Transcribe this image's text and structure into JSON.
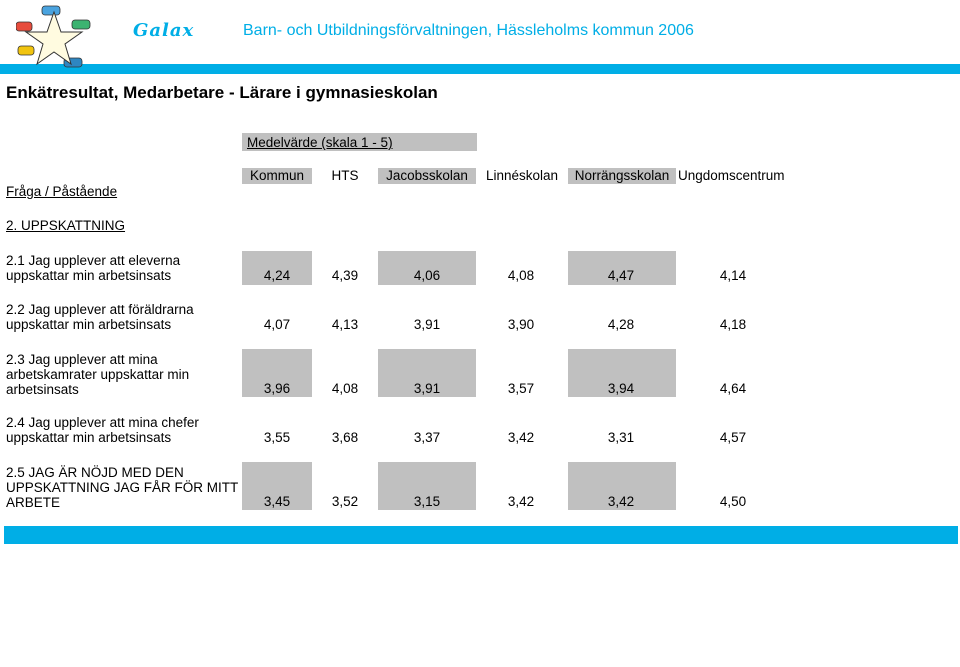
{
  "header": {
    "brand": "Galax",
    "organization": "Barn- och Utbildningsförvaltningen, Hässleholms kommun 2006",
    "title": "Enkätresultat, Medarbetare - Lärare i gymnasieskolan",
    "accent_color": "#00aee6"
  },
  "table": {
    "scale_label": "Medelvärde (skala 1 - 5)",
    "question_header": "Fråga / Påstående",
    "section": "2. UPPSKATTNING",
    "columns": [
      "Kommun",
      "HTS",
      "Jacobsskolan",
      "Linnéskolan",
      "Norrängsskolan",
      "Ungdomscentrum"
    ],
    "rows": [
      {
        "lines": [
          "2.1 Jag upplever att eleverna",
          "uppskattar min arbetsinsats"
        ],
        "values": [
          "4,24",
          "4,39",
          "4,06",
          "4,08",
          "4,47",
          "4,14"
        ]
      },
      {
        "lines": [
          "2.2 Jag upplever att föräldrarna",
          "uppskattar min arbetsinsats"
        ],
        "values": [
          "4,07",
          "4,13",
          "3,91",
          "3,90",
          "4,28",
          "4,18"
        ]
      },
      {
        "lines": [
          "2.3 Jag upplever att mina",
          "arbetskamrater uppskattar min",
          "arbetsinsats"
        ],
        "values": [
          "3,96",
          "4,08",
          "3,91",
          "3,57",
          "3,94",
          "4,64"
        ]
      },
      {
        "lines": [
          "2.4 Jag upplever att mina chefer",
          "uppskattar min arbetsinsats"
        ],
        "values": [
          "3,55",
          "3,68",
          "3,37",
          "3,42",
          "3,31",
          "4,57"
        ]
      },
      {
        "lines": [
          "2.5 JAG ÄR NÖJD MED DEN",
          "UPPSKATTNING JAG FÅR FÖR MITT",
          "ARBETE"
        ],
        "values": [
          "3,45",
          "3,52",
          "3,15",
          "3,42",
          "3,42",
          "4,50"
        ]
      }
    ]
  }
}
